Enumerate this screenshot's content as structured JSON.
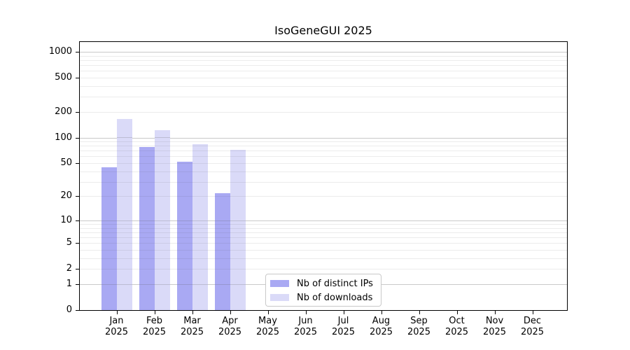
{
  "chart_data": {
    "type": "bar",
    "title": "IsoGeneGUI 2025",
    "scale": "log1p",
    "grid": "both",
    "xlabel": "",
    "ylabel": "",
    "ylim": [
      0,
      1300
    ],
    "y_ticks": [
      0,
      1,
      2,
      5,
      10,
      20,
      50,
      100,
      200,
      500,
      1000
    ],
    "categories": [
      "Jan 2025",
      "Feb 2025",
      "Mar 2025",
      "Apr 2025",
      "May 2025",
      "Jun 2025",
      "Jul 2025",
      "Aug 2025",
      "Sep 2025",
      "Oct 2025",
      "Nov 2025",
      "Dec 2025"
    ],
    "series": [
      {
        "name": "Nb of distinct IPs",
        "color": "#a9a9f3",
        "values": [
          45,
          78,
          52,
          22,
          0,
          0,
          0,
          0,
          0,
          0,
          0,
          0
        ]
      },
      {
        "name": "Nb of downloads",
        "color": "#dadaf8",
        "values": [
          165,
          122,
          84,
          72,
          0,
          0,
          0,
          0,
          0,
          0,
          0,
          0
        ]
      }
    ],
    "legend_position": "bottom-center"
  },
  "colors": {
    "major_grid": "#c9c9c9",
    "minor_grid": "#ececec",
    "axis": "#000000",
    "background": "#ffffff"
  }
}
